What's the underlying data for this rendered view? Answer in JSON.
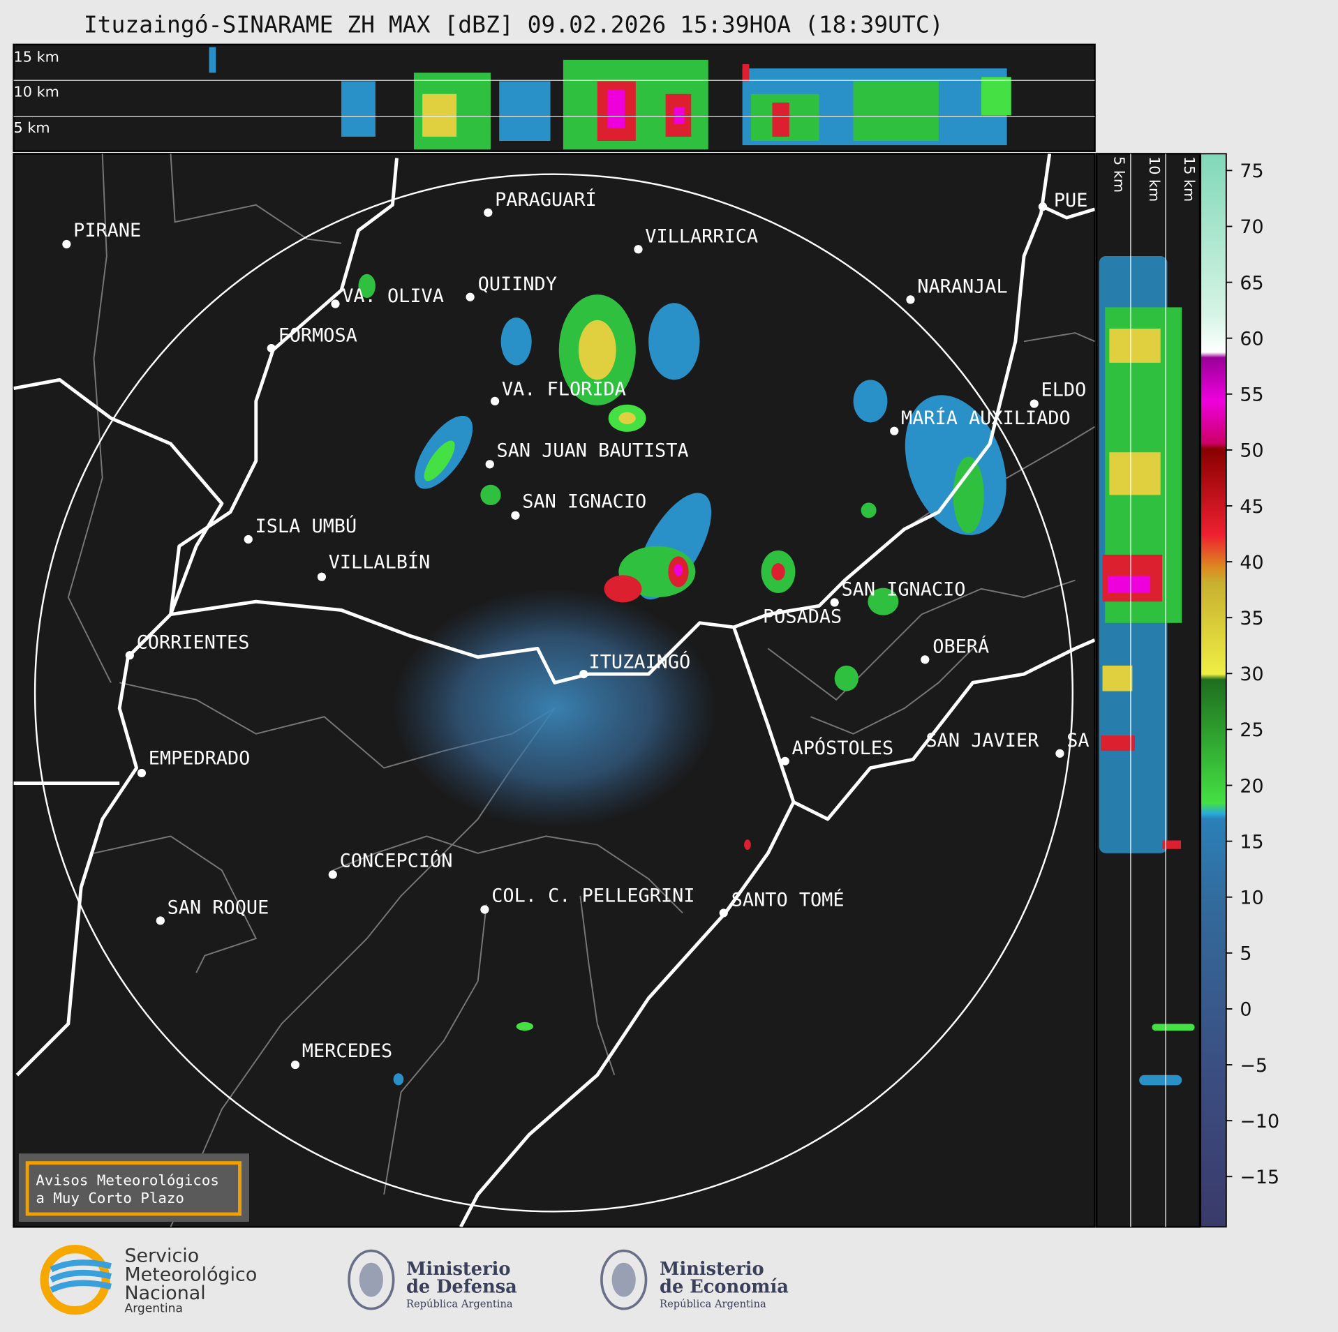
{
  "title": "Ituzaingó-SINARAME ZH MAX [dBZ] 09.02.2026 15:39HOA (18:39UTC)",
  "profile_top": {
    "altitude_labels": [
      "15 km",
      "10 km",
      "5 km"
    ]
  },
  "profile_right": {
    "altitude_labels": [
      "5 km",
      "10 km",
      "15 km"
    ]
  },
  "places": [
    "PIRANE",
    "PARAGUARÍ",
    "VILLARRICA",
    "QUIINDY",
    "VA. OLIVA",
    "FORMOSA",
    "NARANJAL",
    "VA. FLORIDA",
    "ELDO",
    "MARÍA AUXILIADO",
    "SAN JUAN BAUTISTA",
    "SAN IGNACIO",
    "ISLA UMBÚ",
    "VILLALBÍN",
    "SAN IGNACIO",
    "POSADAS",
    "CORRIENTES",
    "ITUZAINGÓ",
    "OBERÁ",
    "EMPEDRADO",
    "APÓSTOLES",
    "SAN JAVIER",
    "SA",
    "CONCEPCIÓN",
    "COL. C. PELLEGRINI",
    "SANTO TOMÉ",
    "SAN ROQUE",
    "MERCEDES",
    "PUE"
  ],
  "colorbar": {
    "range": [
      -19.5,
      76.5
    ],
    "ticks": [
      75,
      70,
      65,
      60,
      55,
      50,
      45,
      40,
      35,
      30,
      25,
      20,
      15,
      10,
      5,
      0,
      {
        "value": -5,
        "label": "−5"
      },
      {
        "value": -10,
        "label": "−10"
      },
      {
        "value": -15,
        "label": "−15"
      }
    ]
  },
  "warning": {
    "lines": [
      "Avisos Meteorológicos",
      "a Muy Corto Plazo"
    ]
  },
  "logos": {
    "smn": [
      "Servicio",
      "Meteorológico",
      "Nacional",
      "Argentina"
    ],
    "defensa": [
      "Ministerio",
      "de Defensa",
      "República Argentina"
    ],
    "economia": [
      "Ministerio",
      "de Economía",
      "República Argentina"
    ]
  }
}
